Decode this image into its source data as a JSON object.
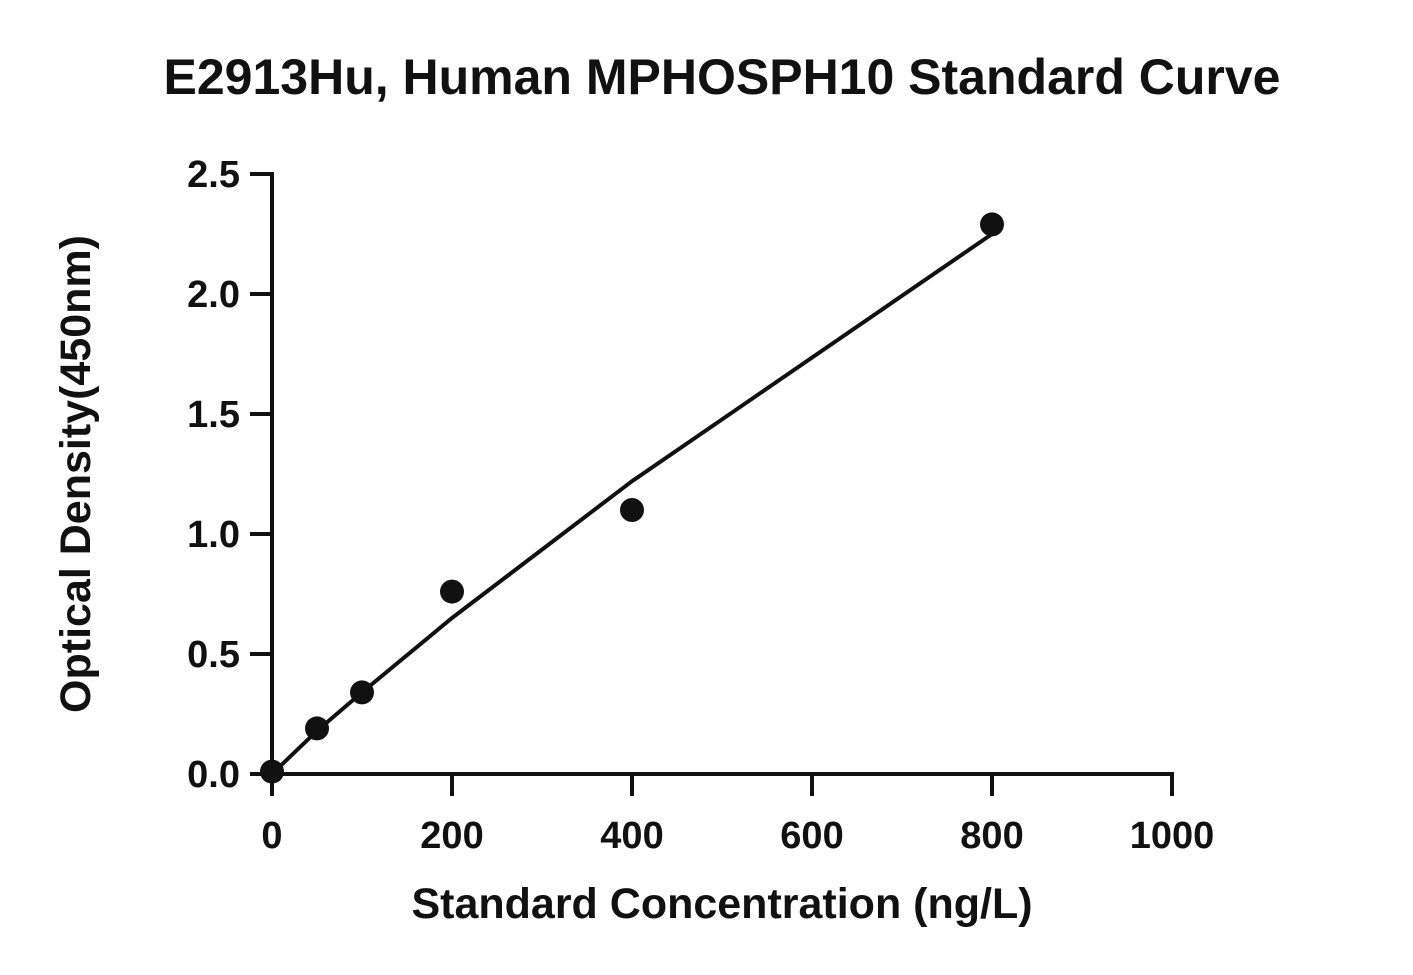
{
  "chart_data": {
    "type": "scatter",
    "title": "E2913Hu, Human MPHOSPH10 Standard Curve",
    "xlabel": "Standard Concentration (ng/L)",
    "ylabel": "Optical Density(450nm)",
    "xlim": [
      0,
      1000
    ],
    "ylim": [
      0,
      2.5
    ],
    "xticks": [
      0,
      200,
      400,
      600,
      800,
      1000
    ],
    "xtick_labels": [
      "0",
      "200",
      "400",
      "600",
      "800",
      "1000"
    ],
    "yticks": [
      0,
      0.5,
      1.0,
      1.5,
      2.0,
      2.5
    ],
    "ytick_labels": [
      "0.0",
      "0.5",
      "1.0",
      "1.5",
      "2.0",
      "2.5"
    ],
    "grid": false,
    "series": [
      {
        "x": [
          0,
          50,
          100,
          200,
          400,
          800
        ],
        "y": [
          0.01,
          0.19,
          0.34,
          0.76,
          1.1,
          2.29
        ]
      }
    ],
    "fit_curve": {
      "x": [
        0,
        50,
        100,
        200,
        400,
        800
      ],
      "y": [
        0.0,
        0.18,
        0.34,
        0.65,
        1.22,
        2.25
      ]
    },
    "colors": {
      "marks": "#111111",
      "text": "#111111",
      "background": "#ffffff"
    }
  }
}
